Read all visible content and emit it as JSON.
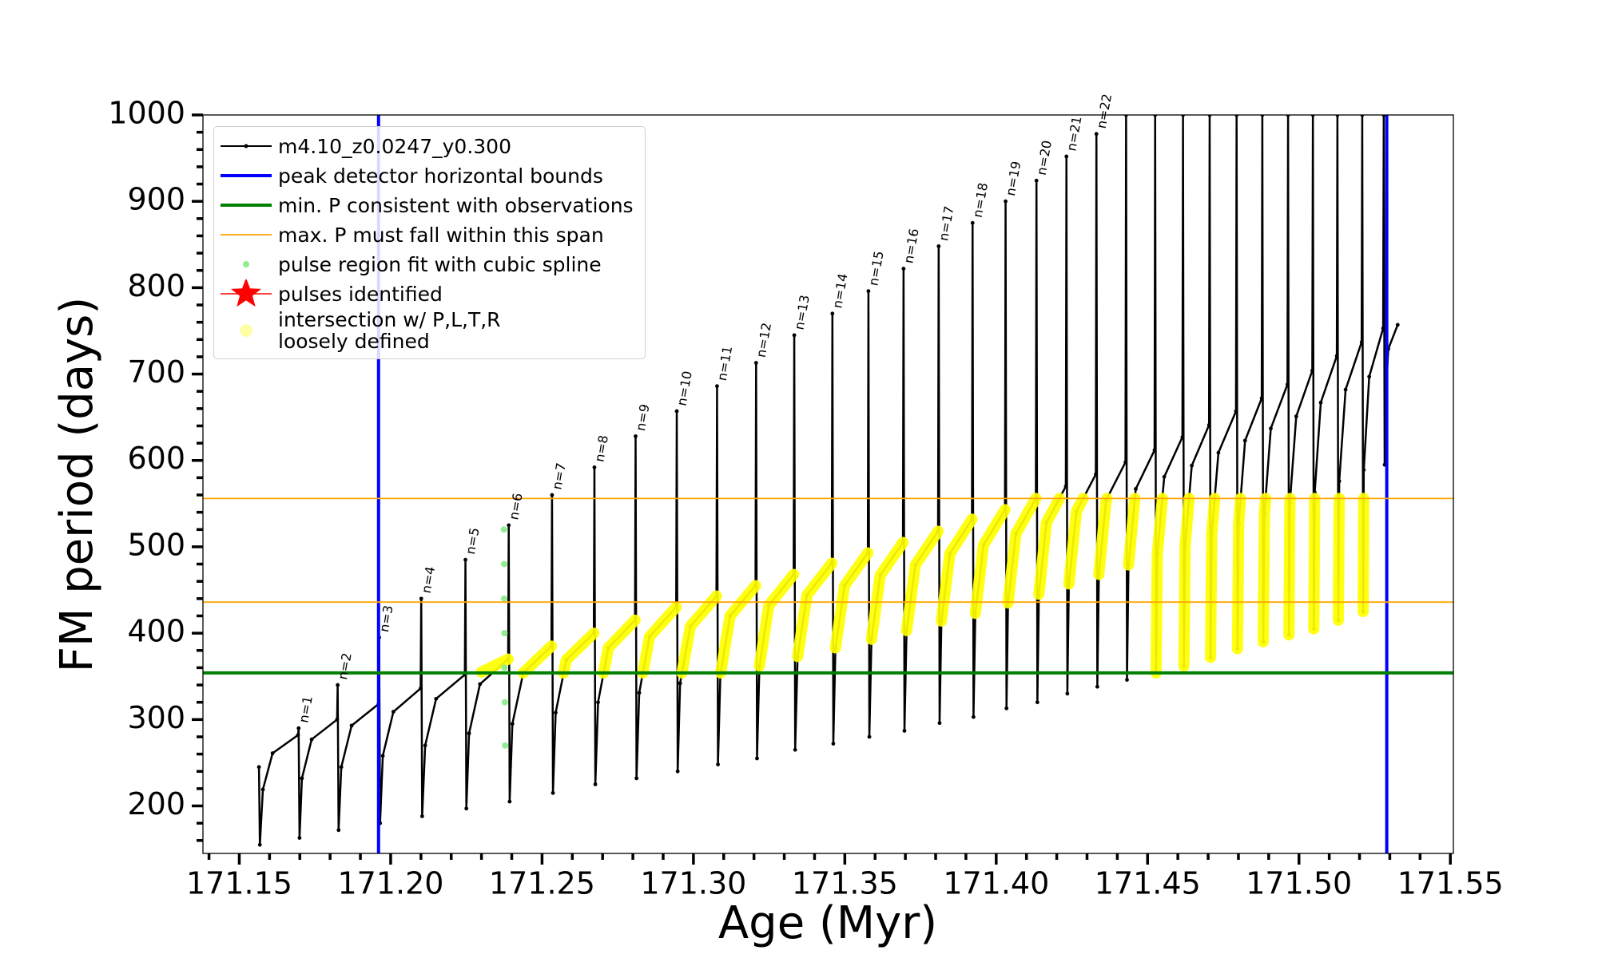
{
  "chart_data": {
    "type": "line",
    "xlabel": "Age (Myr)",
    "ylabel": "FM period (days)",
    "xlim": [
      171.138,
      171.551
    ],
    "ylim": [
      145,
      1000
    ],
    "xticks": [
      171.15,
      {
        "value": 171.2,
        "label": "171.20"
      },
      171.25,
      {
        "value": 171.3,
        "label": "171.30"
      },
      171.35,
      {
        "value": 171.4,
        "label": "171.40"
      },
      171.45,
      {
        "value": 171.5,
        "label": "171.50"
      },
      171.55
    ],
    "yticks": [
      200,
      300,
      400,
      500,
      600,
      700,
      800,
      900,
      1000
    ],
    "xminorticks": [
      171.14,
      171.16,
      171.17,
      171.18,
      171.19,
      171.21,
      171.22,
      171.23,
      171.24,
      171.26,
      171.27,
      171.28,
      171.29,
      171.31,
      171.32,
      171.33,
      171.34,
      171.36,
      171.37,
      171.38,
      171.39,
      171.41,
      171.42,
      171.43,
      171.44,
      171.46,
      171.47,
      171.48,
      171.49,
      171.51,
      171.52,
      171.53,
      171.54
    ],
    "yminorticks": [
      160,
      180,
      220,
      240,
      260,
      280,
      320,
      340,
      360,
      380,
      420,
      440,
      460,
      480,
      520,
      540,
      560,
      580,
      620,
      640,
      660,
      680,
      720,
      740,
      760,
      780,
      820,
      840,
      860,
      880,
      920,
      940,
      960,
      980
    ],
    "grid": false,
    "legend": "upper left",
    "series": [
      {
        "name": "m4.10_z0.0247_y0.300",
        "type": "line",
        "marker": ".",
        "color": "#000000",
        "x": [
          171.1565,
          171.1568,
          171.1578,
          171.161,
          171.1694,
          171.1696,
          171.1699,
          171.1707,
          171.1739,
          171.1823,
          171.1825,
          171.1828,
          171.1837,
          171.1871,
          171.196,
          171.1962,
          171.1965,
          171.1974,
          171.2009,
          171.2099,
          171.2101,
          171.2104,
          171.2114,
          171.215,
          171.2245,
          171.2247,
          171.225,
          171.2259,
          171.2295,
          171.2388,
          171.239,
          171.2393,
          171.2402,
          171.2438,
          171.2531,
          171.2533,
          171.2536,
          171.2545,
          171.258,
          171.2671,
          171.2673,
          171.2676,
          171.2685,
          171.2719,
          171.2807,
          171.2809,
          171.2812,
          171.2821,
          171.2855,
          171.2943,
          171.2945,
          171.2948,
          171.2956,
          171.299,
          171.3076,
          171.3078,
          171.3081,
          171.3089,
          171.3121,
          171.3205,
          171.3207,
          171.321,
          171.3218,
          171.3249,
          171.3331,
          171.3333,
          171.3336,
          171.3344,
          171.3375,
          171.3457,
          171.3459,
          171.3462,
          171.3469,
          171.3499,
          171.3576,
          171.3578,
          171.3581,
          171.3588,
          171.3617,
          171.3692,
          171.3694,
          171.3697,
          171.3704,
          171.3733,
          171.3808,
          171.381,
          171.3813,
          171.3819,
          171.3847,
          171.392,
          171.3922,
          171.3925,
          171.3931,
          171.3958,
          171.4029,
          171.4031,
          171.4034,
          171.4039,
          171.4065,
          171.4131,
          171.4133,
          171.4136,
          171.4141,
          171.4166,
          171.423,
          171.4232,
          171.4235,
          171.424,
          171.4265,
          171.4329,
          171.4331,
          171.4334,
          171.4339,
          171.4363,
          171.4427,
          171.4429,
          171.4432,
          171.4437,
          171.4461,
          171.4523,
          171.4525,
          171.4528,
          171.4532,
          171.4555,
          171.4615,
          171.4617,
          171.462,
          171.4624,
          171.4646,
          171.4703,
          171.4705,
          171.4708,
          171.4712,
          171.4734,
          171.4792,
          171.4794,
          171.4797,
          171.4801,
          171.4822,
          171.4877,
          171.4879,
          171.4882,
          171.4886,
          171.4907,
          171.4962,
          171.4964,
          171.4967,
          171.497,
          171.4991,
          171.5044,
          171.5046,
          171.5049,
          171.5052,
          171.5072,
          171.5125,
          171.5127,
          171.513,
          171.5133,
          171.5154,
          171.5207,
          171.5209,
          171.5212,
          171.5214,
          171.5232,
          171.5278,
          171.528,
          171.5283,
          171.5287,
          171.5295,
          171.5326
        ],
        "y": [
          245,
          155,
          219,
          261,
          282,
          290,
          163,
          232,
          277,
          300,
          340,
          172,
          245,
          293,
          318,
          395,
          180,
          258,
          309,
          336,
          440,
          188,
          270,
          324,
          352,
          485,
          197,
          284,
          341,
          370,
          525,
          205,
          295,
          354,
          385,
          560,
          215,
          308,
          369,
          400,
          592,
          225,
          320,
          383,
          415,
          628,
          232,
          331,
          396,
          430,
          657,
          240,
          342,
          408,
          443,
          686,
          248,
          352,
          420,
          455,
          713,
          255,
          362,
          432,
          468,
          745,
          265,
          373,
          444,
          481,
          770,
          272,
          383,
          455,
          493,
          796,
          280,
          393,
          467,
          505,
          822,
          287,
          403,
          479,
          518,
          848,
          296,
          414,
          492,
          532,
          875,
          303,
          423,
          502,
          543,
          900,
          313,
          435,
          515,
          556,
          924,
          320,
          445,
          528,
          570,
          952,
          330,
          457,
          541,
          584,
          978,
          338,
          468,
          554,
          598,
          1000,
          346,
          479,
          567,
          612,
          1000,
          354,
          491,
          581,
          627,
          1000,
          362,
          502,
          594,
          641,
          1000,
          372,
          515,
          609,
          657,
          1000,
          382,
          527,
          623,
          672,
          1000,
          390,
          539,
          637,
          688,
          1000,
          398,
          551,
          651,
          704,
          1000,
          405,
          563,
          667,
          721,
          1000,
          415,
          576,
          682,
          737,
          1000,
          425,
          589,
          697,
          753,
          1000,
          595,
          676,
          729,
          757
        ]
      },
      {
        "name": "peak detector horizontal bounds",
        "type": "vline",
        "color": "#0000ff",
        "x": [
          171.196,
          171.529
        ]
      },
      {
        "name": "min. P consistent with observations",
        "type": "hline",
        "color": "#008000",
        "y": [
          354
        ]
      },
      {
        "name": "max. P must fall within this span",
        "type": "hline",
        "color": "#ffa500",
        "y": [
          436,
          556
        ]
      },
      {
        "name": "pulse region fit with cubic spline",
        "type": "scatter",
        "marker": ".",
        "color": "#90ee90",
        "x": [
          171.2374,
          171.2375,
          171.2375,
          171.2376,
          171.2376,
          171.2377,
          171.2378
        ],
        "y": [
          520,
          480,
          440,
          400,
          360,
          320,
          270
        ]
      },
      {
        "name": "pulses identified",
        "type": "scatter",
        "marker": "*",
        "color": "#ff0000",
        "x": [],
        "y": []
      },
      {
        "name": "intersection w/ P,L,T,R\nloosely defined",
        "type": "line",
        "marker": "o",
        "color": "#ffff00",
        "x": [
          171.23,
          171.2388,
          null,
          171.2438,
          171.2531,
          null,
          171.2571,
          171.258,
          171.2671,
          null,
          171.2703,
          171.2719,
          171.2807,
          null,
          171.2833,
          171.2855,
          171.2943,
          null,
          171.2962,
          171.299,
          171.3076,
          null,
          171.309,
          171.3121,
          171.3205,
          null,
          171.3218,
          171.3249,
          171.3331,
          null,
          171.3344,
          171.3375,
          171.3457,
          null,
          171.3469,
          171.3499,
          171.3576,
          null,
          171.3588,
          171.3617,
          171.3692,
          null,
          171.3704,
          171.3733,
          171.3808,
          null,
          171.3819,
          171.3847,
          171.392,
          null,
          171.3931,
          171.3958,
          171.4029,
          null,
          171.4039,
          171.4065,
          171.4131,
          null,
          171.4141,
          171.4166,
          171.4209,
          null,
          171.424,
          171.4265,
          171.4287,
          null,
          171.4339,
          171.4363,
          171.4366,
          null,
          171.4437,
          171.4458,
          null,
          171.4528,
          171.4532,
          171.4549,
          null,
          171.462,
          171.4624,
          171.4637,
          null,
          171.4708,
          171.4712,
          171.4722,
          null,
          171.4797,
          171.4801,
          171.4807,
          null,
          171.4882,
          171.4886,
          171.489,
          null,
          171.4967,
          171.497,
          171.4971,
          null,
          171.5049,
          171.5052,
          null,
          171.513,
          171.5133,
          null,
          171.5212,
          171.5214
        ],
        "y": [
          355,
          370,
          null,
          354,
          385,
          null,
          354,
          369,
          400,
          null,
          354,
          383,
          415,
          null,
          354,
          396,
          430,
          null,
          354,
          408,
          443,
          null,
          354,
          420,
          455,
          null,
          362,
          432,
          468,
          null,
          373,
          444,
          481,
          null,
          383,
          455,
          493,
          null,
          393,
          467,
          505,
          null,
          403,
          479,
          518,
          null,
          414,
          492,
          532,
          null,
          423,
          502,
          543,
          null,
          435,
          515,
          556,
          null,
          445,
          528,
          556,
          null,
          457,
          541,
          556,
          null,
          468,
          554,
          556,
          null,
          479,
          556,
          null,
          354,
          491,
          556,
          null,
          362,
          502,
          556,
          null,
          372,
          515,
          556,
          null,
          382,
          527,
          556,
          null,
          390,
          539,
          556,
          null,
          398,
          551,
          556,
          null,
          405,
          556,
          null,
          415,
          556,
          null,
          425,
          556
        ]
      }
    ],
    "annotations": [
      {
        "text": "n=1",
        "x": 171.1694,
        "y": 290
      },
      {
        "text": "n=2",
        "x": 171.1823,
        "y": 340
      },
      {
        "text": "n=3",
        "x": 171.196,
        "y": 395
      },
      {
        "text": "n=4",
        "x": 171.2099,
        "y": 440
      },
      {
        "text": "n=5",
        "x": 171.2245,
        "y": 485
      },
      {
        "text": "n=6",
        "x": 171.2388,
        "y": 525
      },
      {
        "text": "n=7",
        "x": 171.2531,
        "y": 560
      },
      {
        "text": "n=8",
        "x": 171.2671,
        "y": 592
      },
      {
        "text": "n=9",
        "x": 171.2807,
        "y": 628
      },
      {
        "text": "n=10",
        "x": 171.2943,
        "y": 657
      },
      {
        "text": "n=11",
        "x": 171.3076,
        "y": 686
      },
      {
        "text": "n=12",
        "x": 171.3205,
        "y": 713
      },
      {
        "text": "n=13",
        "x": 171.3331,
        "y": 745
      },
      {
        "text": "n=14",
        "x": 171.3457,
        "y": 770
      },
      {
        "text": "n=15",
        "x": 171.3576,
        "y": 796
      },
      {
        "text": "n=16",
        "x": 171.3692,
        "y": 822
      },
      {
        "text": "n=17",
        "x": 171.3808,
        "y": 848
      },
      {
        "text": "n=18",
        "x": 171.392,
        "y": 875
      },
      {
        "text": "n=19",
        "x": 171.4029,
        "y": 900
      },
      {
        "text": "n=20",
        "x": 171.4131,
        "y": 924
      },
      {
        "text": "n=21",
        "x": 171.423,
        "y": 952
      },
      {
        "text": "n=22",
        "x": 171.4329,
        "y": 978
      }
    ]
  }
}
